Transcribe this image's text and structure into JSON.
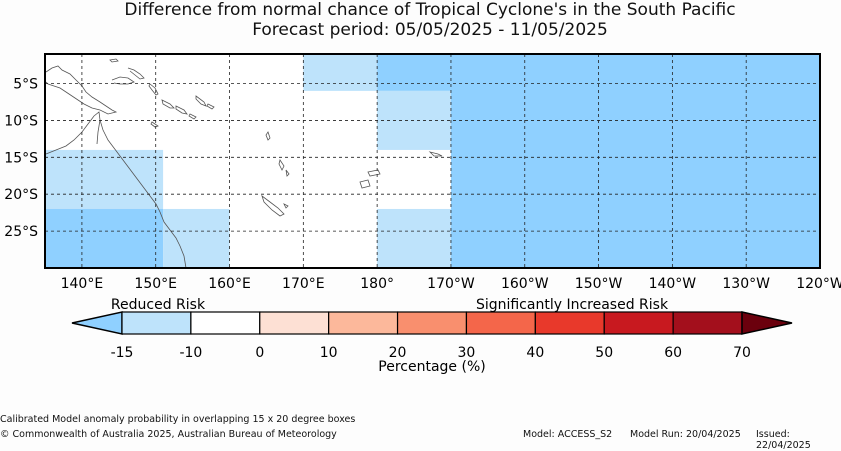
{
  "title": "Difference from normal chance of Tropical Cyclone's in the South Pacific",
  "subtitle": "Forecast period: 05/05/2025 - 11/05/2025",
  "colors": {
    "very_reduced": "#8fd0ff",
    "reduced": "#bee3fb",
    "neutral": "#ffffff",
    "c0_10": "#fde0d4",
    "c10_20": "#fcb89b",
    "c20_30": "#f98f6e",
    "c30_40": "#f4664a",
    "c40_50": "#e8392b",
    "c50_60": "#c8191f",
    "c60_70": "#a30f1c",
    "above_70": "#6b000d"
  },
  "map": {
    "lon_ticks": [
      "140°E",
      "150°E",
      "160°E",
      "170°E",
      "180°",
      "170°W",
      "160°W",
      "150°W",
      "140°W",
      "130°W",
      "120°W"
    ],
    "lat_ticks": [
      "5°S",
      "10°S",
      "15°S",
      "20°S",
      "25°S"
    ],
    "cells": [
      {
        "lon": [
          170,
          180
        ],
        "lat": [
          -1,
          -6
        ],
        "category": "reduced"
      },
      {
        "lon": [
          180,
          190
        ],
        "lat": [
          -1,
          -6
        ],
        "category": "very_reduced"
      },
      {
        "lon": [
          180,
          190
        ],
        "lat": [
          -6,
          -14
        ],
        "category": "reduced"
      },
      {
        "lon": [
          190,
          240
        ],
        "lat": [
          -1,
          -30
        ],
        "category": "very_reduced"
      },
      {
        "lon": [
          135,
          151
        ],
        "lat": [
          -14,
          -22
        ],
        "category": "reduced"
      },
      {
        "lon": [
          135,
          151
        ],
        "lat": [
          -22,
          -30
        ],
        "category": "very_reduced"
      },
      {
        "lon": [
          151,
          160
        ],
        "lat": [
          -22,
          -30
        ],
        "category": "reduced"
      },
      {
        "lon": [
          180,
          190
        ],
        "lat": [
          -22,
          -30
        ],
        "category": "reduced"
      }
    ]
  },
  "colorbar": {
    "reduced_label": "Reduced Risk",
    "increased_label": "Significantly Increased Risk",
    "ticks": [
      "-15",
      "-10",
      "0",
      "10",
      "20",
      "30",
      "40",
      "50",
      "60",
      "70"
    ],
    "segments": [
      "reduced",
      "neutral",
      "c0_10",
      "c10_20",
      "c20_30",
      "c30_40",
      "c40_50",
      "c50_60",
      "c60_70"
    ],
    "xlabel": "Percentage (%)"
  },
  "footer": {
    "note": "Calibrated Model anomaly probability in overlapping 15 x 20 degree boxes",
    "copyright": "© Commonwealth of Australia 2025, Australian Bureau of Meteorology",
    "model": "Model: ACCESS_S2",
    "model_run": "Model Run: 20/04/2025",
    "issued": "Issued: 22/04/2025"
  }
}
